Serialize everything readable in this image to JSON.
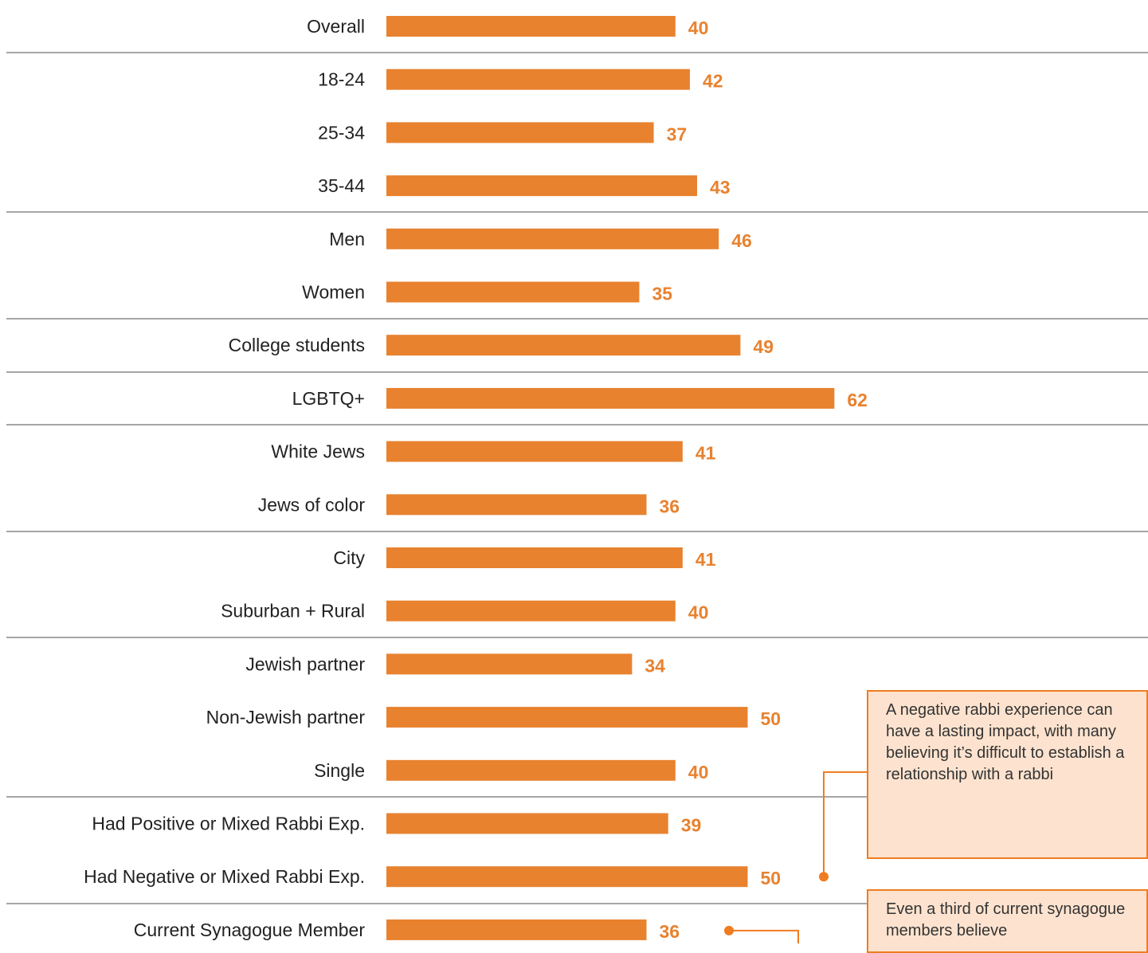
{
  "chart_data": {
    "type": "bar",
    "orientation": "horizontal",
    "categories": [
      "Overall",
      "18-24",
      "25-34",
      "35-44",
      "Men",
      "Women",
      "College students",
      "LGBTQ+",
      "White Jews",
      "Jews of color",
      "City",
      "Suburban + Rural",
      "Jewish partner",
      "Non-Jewish partner",
      "Single",
      "Had Positive or Mixed Rabbi Exp.",
      "Had Negative or Mixed Rabbi Exp.",
      "Current Synagogue Member"
    ],
    "values": [
      40,
      42,
      37,
      43,
      46,
      35,
      49,
      62,
      41,
      36,
      41,
      40,
      34,
      50,
      40,
      39,
      50,
      36
    ],
    "group_separators_after": [
      "Overall",
      "35-44",
      "Women",
      "College students",
      "LGBTQ+",
      "Jews of color",
      "Suburban + Rural",
      "Single",
      "Had Negative or Mixed Rabbi Exp."
    ],
    "title": "",
    "xlabel": "",
    "ylabel": "",
    "grid": false,
    "colors": {
      "bar": "#e8822f",
      "value_text": "#e8822f",
      "separator": "#a6a6a6",
      "category_text": "#222222"
    }
  },
  "callouts": [
    {
      "text": "A negative rabbi experience can have a lasting impact, with many believing it’s difficult to establish a relationship with a rabbi",
      "points_to": "Had Negative or Mixed Rabbi Exp.",
      "fill": "#fde3cf",
      "border": "#f07c20",
      "connector": "#f07c20"
    },
    {
      "text": "Even a third of current synagogue members believe",
      "points_to": "Current Synagogue Member",
      "fill": "#fde3cf",
      "border": "#f07c20",
      "connector": "#f07c20"
    }
  ]
}
